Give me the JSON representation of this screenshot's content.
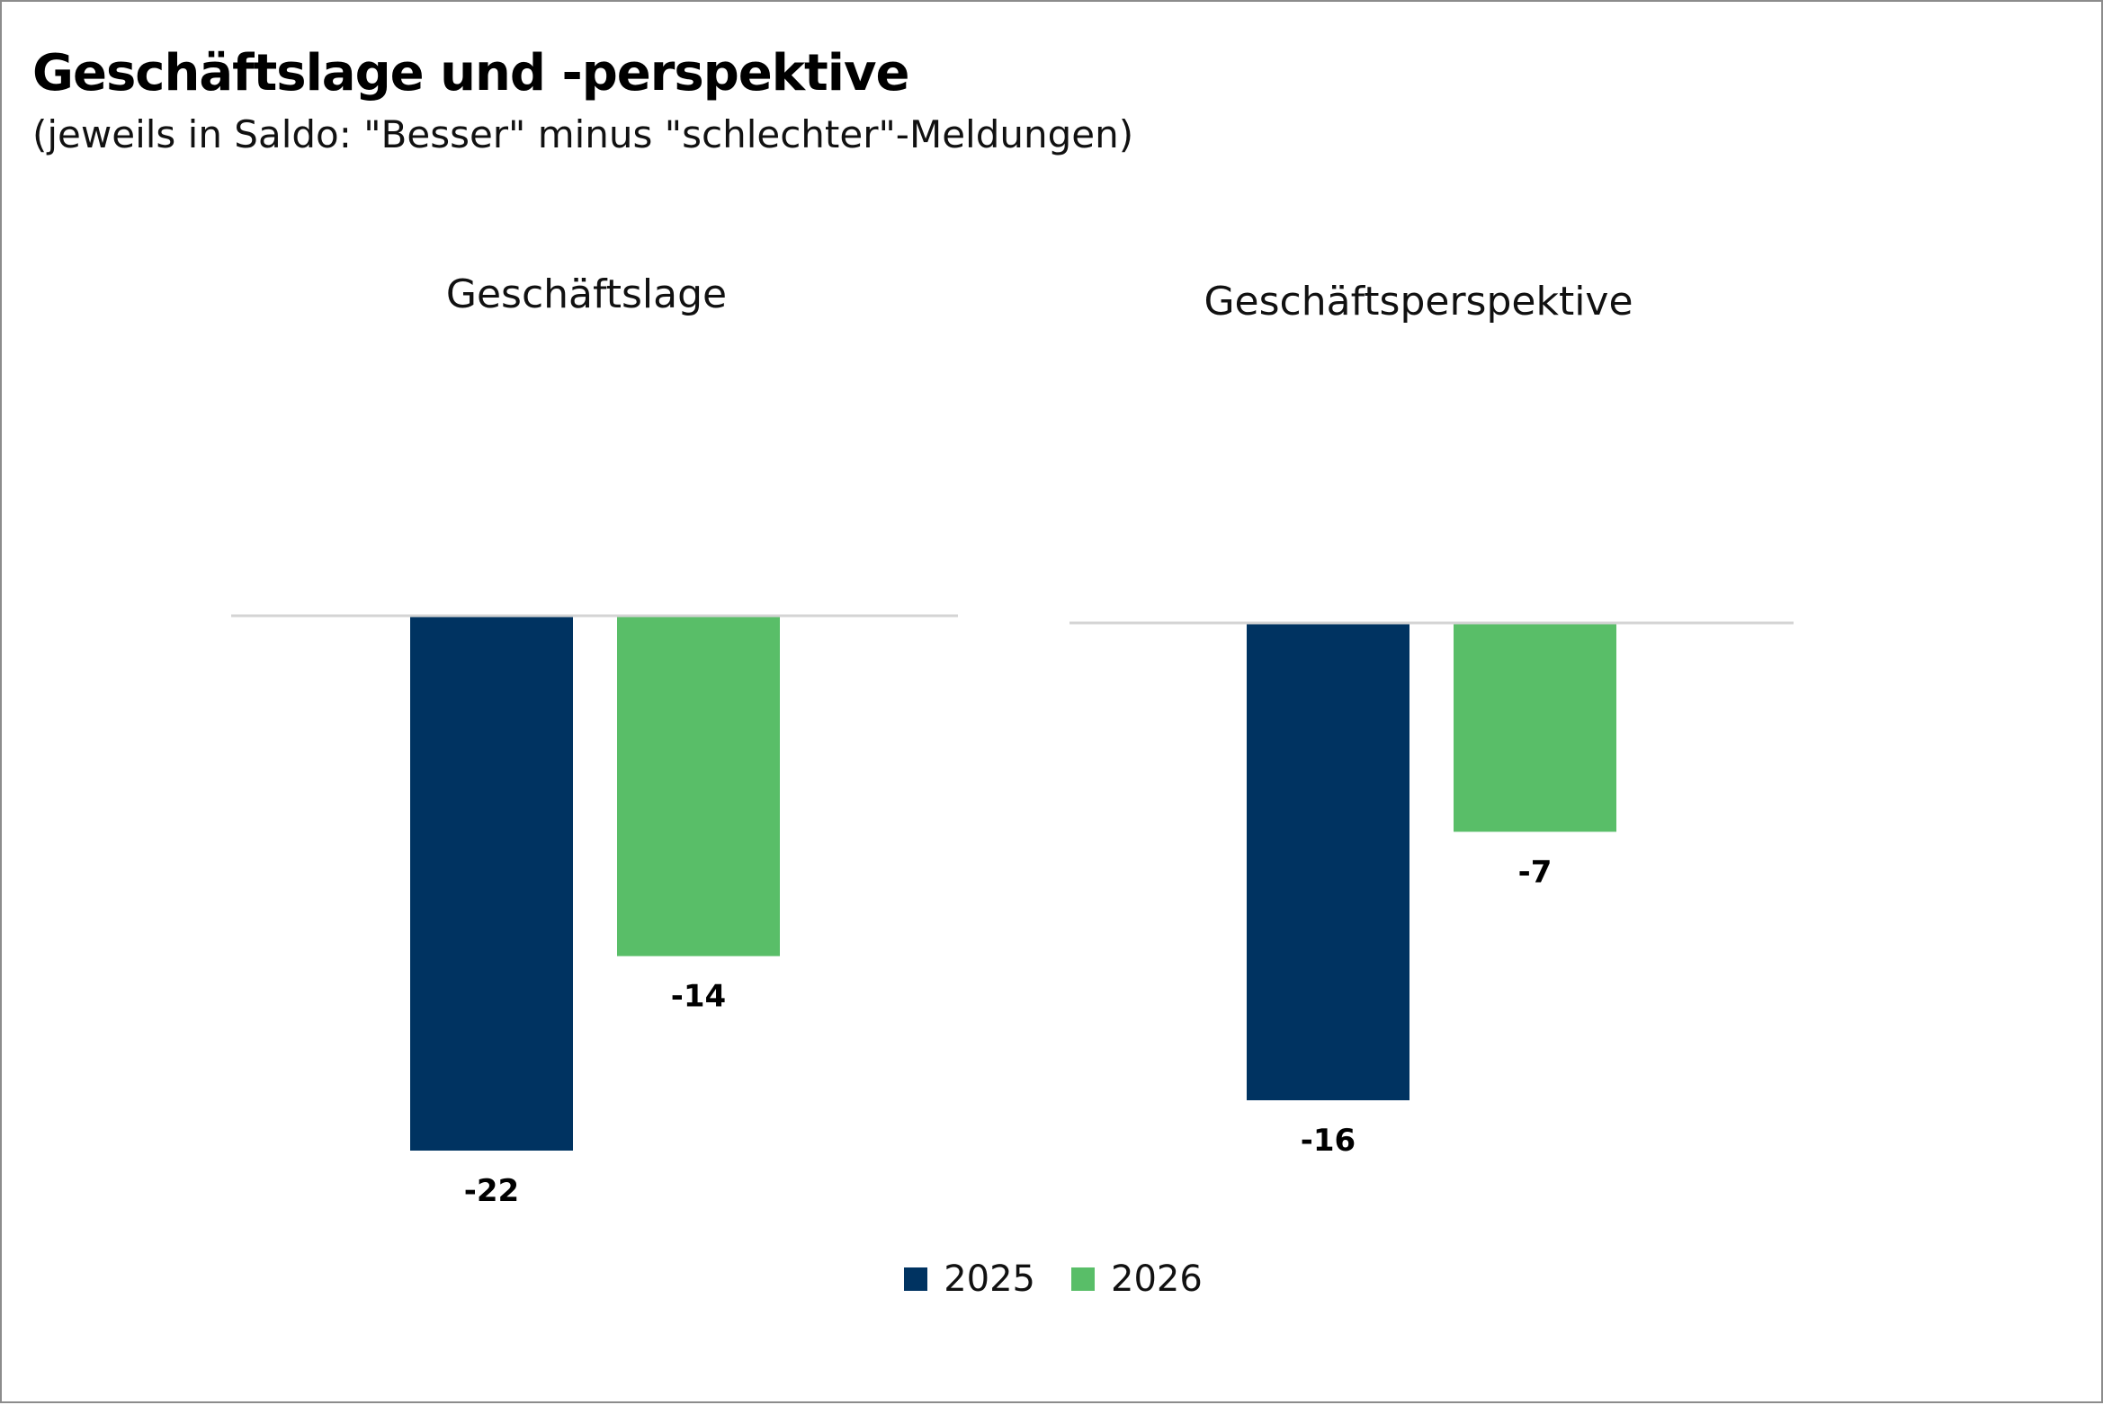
{
  "title": "Geschäftslage und -perspektive",
  "subtitle": "(jeweils in Saldo: \"Besser\" minus \"schlechter\"-Meldungen)",
  "chart_data": [
    {
      "type": "bar",
      "title": "Geschäftslage",
      "categories": [
        "Geschäftslage"
      ],
      "series": [
        {
          "name": "2025",
          "values": [
            -22
          ]
        },
        {
          "name": "2026",
          "values": [
            -14
          ]
        }
      ],
      "value_labels": [
        "-22",
        "-14"
      ],
      "ylim": [
        -22,
        0
      ],
      "grid": false,
      "legend_position": "bottom"
    },
    {
      "type": "bar",
      "title": "Geschäftsperspektive",
      "categories": [
        "Geschäftsperspektive"
      ],
      "series": [
        {
          "name": "2025",
          "values": [
            -16
          ]
        },
        {
          "name": "2026",
          "values": [
            -7
          ]
        }
      ],
      "value_labels": [
        "-16",
        "-7"
      ],
      "ylim": [
        -16,
        0
      ],
      "grid": false,
      "legend_position": "bottom"
    }
  ],
  "legend": [
    {
      "label": "2025",
      "color": "#003361"
    },
    {
      "label": "2026",
      "color": "#59be68"
    }
  ],
  "colors": {
    "series_2025": "#003361",
    "series_2026": "#59be68",
    "baseline": "#d4d4d4"
  }
}
